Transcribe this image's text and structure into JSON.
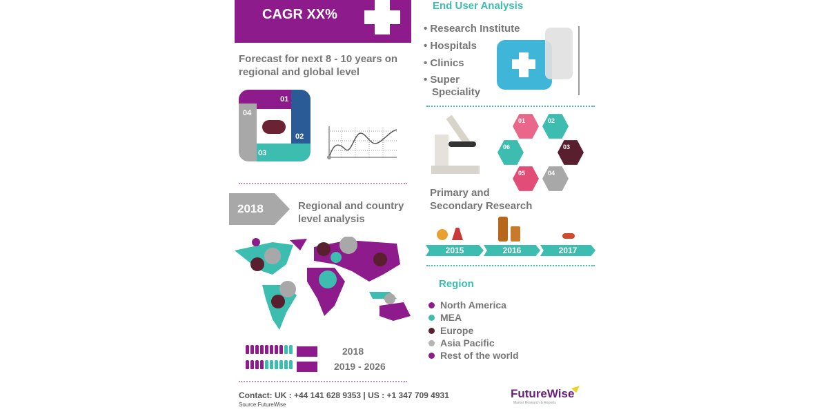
{
  "cagr": {
    "label": "CAGR XX%"
  },
  "forecast": {
    "line1": "Forecast for next 8 - 10  years on",
    "line2": "regional and global level"
  },
  "cycle": {
    "steps": [
      "01",
      "02",
      "03",
      "04"
    ]
  },
  "end_user": {
    "title": "End User Analysis",
    "items": [
      "Research Institute",
      "Hospitals",
      "Clinics",
      "Super",
      "Speciality"
    ]
  },
  "hexagons": [
    "01",
    "02",
    "03",
    "04",
    "05",
    "06"
  ],
  "research": {
    "line1": "Primary and",
    "line2": "Secondary Research"
  },
  "timeline": [
    "2015",
    "2016",
    "2017"
  ],
  "year_badge": "2018",
  "regional": {
    "line1": "Regional and country",
    "line2": "level analysis"
  },
  "people_rows": [
    {
      "label": "2018",
      "purple": 8,
      "teal": 2
    },
    {
      "label": "2019 - 2026",
      "purple": 4,
      "teal": 6
    }
  ],
  "region": {
    "title": "Region",
    "items": [
      {
        "label": "North America",
        "color": "#8e1b8c"
      },
      {
        "label": "MEA",
        "color": "#3dbdaf"
      },
      {
        "label": "Europe",
        "color": "#5a1f2e"
      },
      {
        "label": "Asia Pacific",
        "color": "#b5b5b5"
      },
      {
        "label": "Rest of the world",
        "color": "#8e1b8c"
      }
    ]
  },
  "contact": {
    "text": "Contact:   UK : +44 141 628 9353  |  US :  +1 347 709 4931",
    "source": "Source:FutureWise"
  },
  "logo": {
    "name": "FutureWise",
    "tagline": "Market Research & Reports"
  },
  "colors": {
    "purple": "#8e1b8c",
    "teal": "#3dbdaf",
    "maroon": "#5a1f2e",
    "gray": "#a8a8a8",
    "blue": "#2b5b97",
    "pink": "#e24d78"
  }
}
